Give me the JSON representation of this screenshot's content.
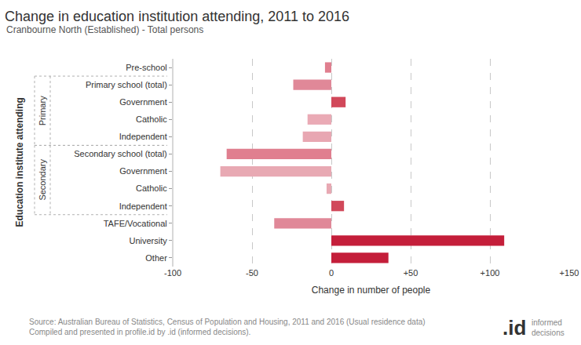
{
  "chart_data": {
    "type": "bar",
    "orientation": "horizontal",
    "title": "Change in education institution attending, 2011 to 2016",
    "subtitle": "Cranbourne North (Established) - Total persons",
    "x_label": "Change in number of people",
    "y_label": "Education institute attending",
    "categories": [
      "Pre-school",
      "Primary school (total)",
      "Government",
      "Catholic",
      "Independent",
      "Secondary school (total)",
      "Government",
      "Catholic",
      "Independent",
      "TAFE/Vocational",
      "University",
      "Other"
    ],
    "values": [
      -4,
      -24,
      9,
      -15,
      -18,
      -66,
      -70,
      -3,
      8,
      -36,
      109,
      36
    ],
    "colors": [
      "#e07f8f",
      "#e08898",
      "#d1485a",
      "#eaaab5",
      "#e8a7b2",
      "#e07f8f",
      "#e8a9b3",
      "#e8a9b3",
      "#d1485a",
      "#e08898",
      "#c41e3a",
      "#c41e3a"
    ],
    "groups": [
      {
        "label": "Primary",
        "start": 1,
        "end": 4
      },
      {
        "label": "Secondary",
        "start": 5,
        "end": 8
      }
    ],
    "xlim": [
      -100,
      150
    ],
    "xticks": [
      -100,
      -50,
      0,
      {
        "value": 50,
        "label": "+50"
      },
      {
        "value": 100,
        "label": "+100"
      },
      {
        "value": 150,
        "label": "+150"
      }
    ],
    "grid": true,
    "notes": [
      "Source: Australian Bureau of Statistics, Census of Population and Housing, 2011 and 2016 (Usual residence data)",
      "Compiled and presented in profile.id by .id (informed decisions)."
    ],
    "logo": {
      "mark": ".id",
      "text": "informed decisions"
    }
  }
}
